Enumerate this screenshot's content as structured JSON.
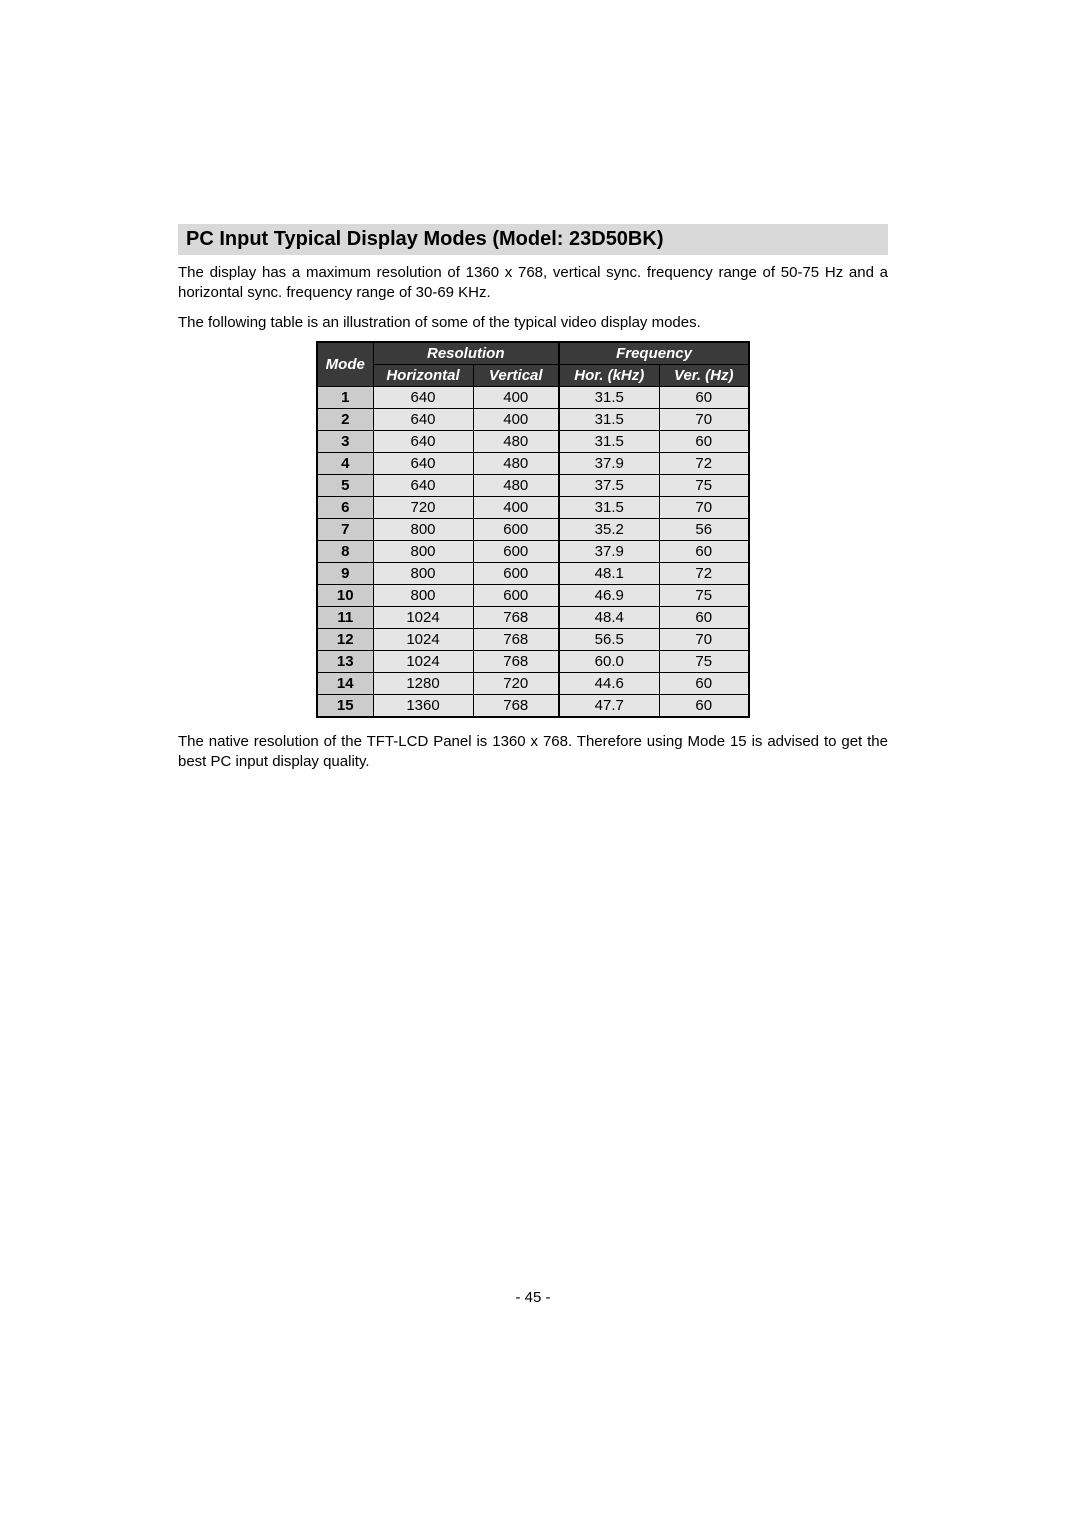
{
  "title": "PC Input Typical Display Modes (Model: 23D50BK)",
  "intro": "The display has a maximum resolution of 1360 x 768, vertical sync. frequency range of 50-75 Hz and a horizontal sync. frequency range of 30-69 KHz.",
  "table_intro": "The following table is an illustration of some of the typical video display modes.",
  "headers": {
    "mode": "Mode",
    "resolution": "Resolution",
    "frequency": "Frequency",
    "horizontal": "Horizontal",
    "vertical": "Vertical",
    "hor_khz": "Hor. (kHz)",
    "ver_hz": "Ver. (Hz)"
  },
  "rows": [
    {
      "mode": "1",
      "h": "640",
      "v": "400",
      "hor": "31.5",
      "ver": "60"
    },
    {
      "mode": "2",
      "h": "640",
      "v": "400",
      "hor": "31.5",
      "ver": "70"
    },
    {
      "mode": "3",
      "h": "640",
      "v": "480",
      "hor": "31.5",
      "ver": "60"
    },
    {
      "mode": "4",
      "h": "640",
      "v": "480",
      "hor": "37.9",
      "ver": "72"
    },
    {
      "mode": "5",
      "h": "640",
      "v": "480",
      "hor": "37.5",
      "ver": "75"
    },
    {
      "mode": "6",
      "h": "720",
      "v": "400",
      "hor": "31.5",
      "ver": "70"
    },
    {
      "mode": "7",
      "h": "800",
      "v": "600",
      "hor": "35.2",
      "ver": "56"
    },
    {
      "mode": "8",
      "h": "800",
      "v": "600",
      "hor": "37.9",
      "ver": "60"
    },
    {
      "mode": "9",
      "h": "800",
      "v": "600",
      "hor": "48.1",
      "ver": "72"
    },
    {
      "mode": "10",
      "h": "800",
      "v": "600",
      "hor": "46.9",
      "ver": "75"
    },
    {
      "mode": "11",
      "h": "1024",
      "v": "768",
      "hor": "48.4",
      "ver": "60"
    },
    {
      "mode": "12",
      "h": "1024",
      "v": "768",
      "hor": "56.5",
      "ver": "70"
    },
    {
      "mode": "13",
      "h": "1024",
      "v": "768",
      "hor": "60.0",
      "ver": "75"
    },
    {
      "mode": "14",
      "h": "1280",
      "v": "720",
      "hor": "44.6",
      "ver": "60"
    },
    {
      "mode": "15",
      "h": "1360",
      "v": "768",
      "hor": "47.7",
      "ver": "60"
    }
  ],
  "footer": "The native resolution of the TFT-LCD Panel is 1360 x 768. Therefore using Mode 15 is advised to get the best PC input display quality.",
  "page_number": "- 45 -",
  "styling": {
    "title_bg": "#d9d9d9",
    "header_bg": "#3a3a3a",
    "header_fg": "#ffffff",
    "mode_col_bg": "#cccccc",
    "cell_bg": "#e5e5e5",
    "border_color": "#000000",
    "body_fontsize": 15,
    "title_fontsize": 20
  }
}
